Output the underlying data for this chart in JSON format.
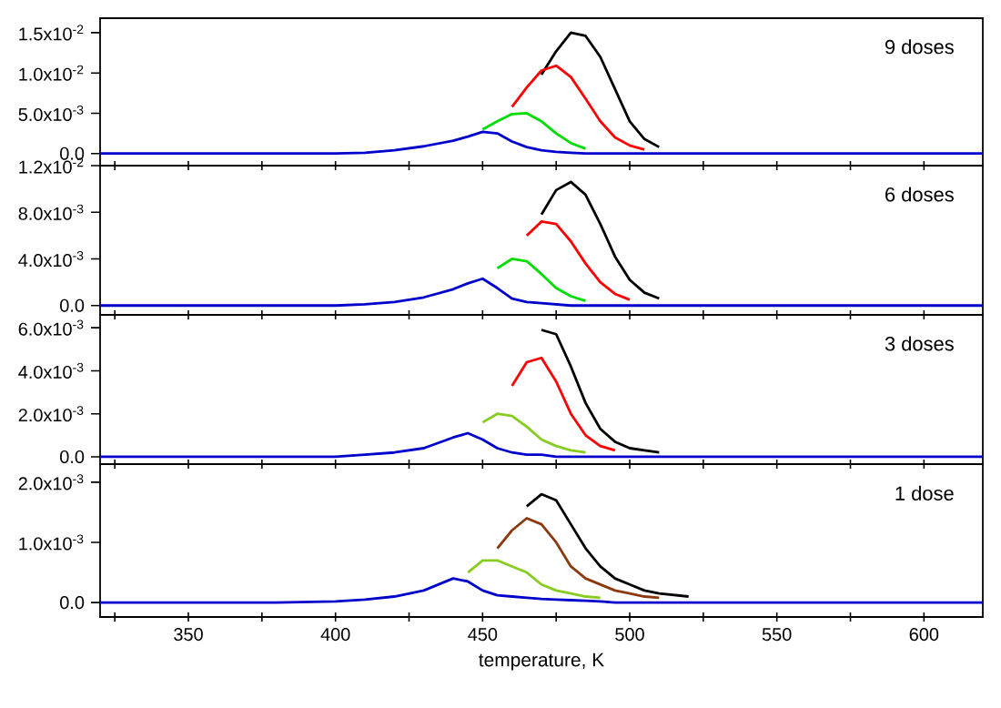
{
  "chart_data": [
    {
      "type": "line",
      "annotations": [
        "9 doses"
      ],
      "tick_labels": "y",
      "x": [
        320,
        380,
        400,
        410,
        420,
        430,
        440,
        445,
        450,
        455,
        460,
        465,
        470,
        475,
        480,
        485,
        490,
        495,
        500,
        505,
        510,
        520,
        530,
        550,
        580,
        620
      ],
      "xlim": [
        320,
        620
      ],
      "ylim": [
        -0.0015,
        0.0168
      ],
      "xticks": [
        {
          "value": 325,
          "label": null
        },
        350,
        {
          "value": 375,
          "label": null
        },
        400,
        {
          "value": 425,
          "label": null
        },
        450,
        {
          "value": 475,
          "label": null
        },
        500,
        {
          "value": 525,
          "label": null
        },
        550,
        {
          "value": 575,
          "label": null
        },
        600
      ],
      "yticks": [
        {
          "value": 0,
          "label": "0.0"
        },
        {
          "value": 0.005,
          "label": "5.0x10$^{-3}$"
        },
        {
          "value": 0.01,
          "label": "1.0x10$^{-2}$"
        },
        {
          "value": 0.015,
          "label": "1.5x10$^{-2}$"
        }
      ],
      "series": [
        {
          "color": "#000000",
          "values": [
            null,
            null,
            null,
            null,
            null,
            null,
            null,
            null,
            null,
            null,
            null,
            null,
            0.0098,
            0.0127,
            0.015,
            0.0146,
            0.012,
            0.008,
            0.004,
            0.0018,
            0.0008,
            null,
            null,
            null,
            null,
            null
          ]
        },
        {
          "color": "#ff0000",
          "values": [
            null,
            null,
            null,
            null,
            null,
            null,
            null,
            null,
            null,
            null,
            0.0058,
            0.0082,
            0.0103,
            0.0109,
            0.0095,
            0.0068,
            0.004,
            0.002,
            0.001,
            0.0005,
            null,
            null,
            null,
            null,
            null,
            null
          ]
        },
        {
          "color": "#00dd00",
          "values": [
            null,
            null,
            null,
            null,
            null,
            null,
            null,
            null,
            0.003,
            0.004,
            0.0049,
            0.005,
            0.004,
            0.0025,
            0.0013,
            0.0006,
            null,
            null,
            null,
            null,
            null,
            null,
            null,
            null,
            null,
            null
          ]
        },
        {
          "color": "#0000cc",
          "values": [
            0,
            0,
            0,
            0.0001,
            0.0004,
            0.0009,
            0.0016,
            0.0021,
            0.0027,
            0.0025,
            0.0015,
            0.0008,
            0.0004,
            0.0002,
            0.0001,
            0,
            0,
            0,
            0,
            0,
            0,
            0,
            0,
            0,
            0,
            0
          ]
        }
      ]
    },
    {
      "type": "line",
      "annotations": [
        "6 doses"
      ],
      "tick_labels": "y",
      "x": [
        320,
        380,
        400,
        410,
        420,
        430,
        440,
        445,
        450,
        455,
        460,
        465,
        470,
        475,
        480,
        485,
        490,
        495,
        500,
        505,
        510,
        520,
        530,
        550,
        580,
        620
      ],
      "xlim": [
        320,
        620
      ],
      "ylim": [
        -0.0008,
        0.012
      ],
      "xticks": [
        {
          "value": 325,
          "label": null
        },
        350,
        {
          "value": 375,
          "label": null
        },
        400,
        {
          "value": 425,
          "label": null
        },
        450,
        {
          "value": 475,
          "label": null
        },
        500,
        {
          "value": 525,
          "label": null
        },
        550,
        {
          "value": 575,
          "label": null
        },
        600
      ],
      "yticks": [
        {
          "value": 0,
          "label": "0.0"
        },
        {
          "value": 0.004,
          "label": "4.0x10$^{-3}$"
        },
        {
          "value": 0.008,
          "label": "8.0x10$^{-3}$"
        },
        {
          "value": 0.012,
          "label": "1.2x10$^{-2}$"
        }
      ],
      "series": [
        {
          "color": "#000000",
          "values": [
            null,
            null,
            null,
            null,
            null,
            null,
            null,
            null,
            null,
            null,
            null,
            null,
            0.0078,
            0.0099,
            0.0106,
            0.0095,
            0.007,
            0.0042,
            0.0022,
            0.0011,
            0.0006,
            null,
            null,
            null,
            null,
            null
          ]
        },
        {
          "color": "#ff0000",
          "values": [
            null,
            null,
            null,
            null,
            null,
            null,
            null,
            null,
            null,
            null,
            null,
            0.006,
            0.0072,
            0.007,
            0.0055,
            0.0036,
            0.002,
            0.001,
            0.0005,
            null,
            null,
            null,
            null,
            null,
            null,
            null
          ]
        },
        {
          "color": "#00dd00",
          "values": [
            null,
            null,
            null,
            null,
            null,
            null,
            null,
            null,
            null,
            0.0032,
            0.004,
            0.0038,
            0.0027,
            0.0015,
            0.0008,
            0.0004,
            null,
            null,
            null,
            null,
            null,
            null,
            null,
            null,
            null,
            null
          ]
        },
        {
          "color": "#0000cc",
          "values": [
            0,
            0,
            0,
            0.0001,
            0.0003,
            0.0007,
            0.0014,
            0.0019,
            0.0023,
            0.0015,
            0.0006,
            0.0003,
            0.0002,
            0.0001,
            0,
            0,
            0,
            0,
            0,
            0,
            0,
            0,
            0,
            0,
            0,
            0
          ]
        }
      ]
    },
    {
      "type": "line",
      "annotations": [
        "3 doses"
      ],
      "tick_labels": "y",
      "x": [
        320,
        380,
        400,
        410,
        420,
        430,
        440,
        445,
        450,
        455,
        460,
        465,
        470,
        475,
        480,
        485,
        490,
        495,
        500,
        505,
        510,
        520,
        530,
        550,
        580,
        620
      ],
      "xlim": [
        320,
        620
      ],
      "ylim": [
        -0.00034,
        0.0066
      ],
      "xticks": [
        {
          "value": 325,
          "label": null
        },
        350,
        {
          "value": 375,
          "label": null
        },
        400,
        {
          "value": 425,
          "label": null
        },
        450,
        {
          "value": 475,
          "label": null
        },
        500,
        {
          "value": 525,
          "label": null
        },
        550,
        {
          "value": 575,
          "label": null
        },
        600
      ],
      "yticks": [
        {
          "value": 0,
          "label": "0.0"
        },
        {
          "value": 0.002,
          "label": "2.0x10$^{-3}$"
        },
        {
          "value": 0.004,
          "label": "4.0x10$^{-3}$"
        },
        {
          "value": 0.006,
          "label": "6.0x10$^{-3}$"
        }
      ],
      "series": [
        {
          "color": "#000000",
          "values": [
            null,
            null,
            null,
            null,
            null,
            null,
            null,
            null,
            null,
            null,
            null,
            null,
            0.0059,
            0.0057,
            0.0042,
            0.0025,
            0.0013,
            0.0007,
            0.0004,
            0.0003,
            0.0002,
            null,
            null,
            null,
            null,
            null
          ]
        },
        {
          "color": "#ff0000",
          "values": [
            null,
            null,
            null,
            null,
            null,
            null,
            null,
            null,
            null,
            null,
            0.0033,
            0.0044,
            0.0046,
            0.0035,
            0.002,
            0.001,
            0.0005,
            0.0003,
            null,
            null,
            null,
            null,
            null,
            null,
            null,
            null
          ]
        },
        {
          "color": "#88cc22",
          "values": [
            null,
            null,
            null,
            null,
            null,
            null,
            null,
            null,
            0.0016,
            0.002,
            0.0019,
            0.0014,
            0.0008,
            0.0005,
            0.0003,
            0.0002,
            null,
            null,
            null,
            null,
            null,
            null,
            null,
            null,
            null,
            null
          ]
        },
        {
          "color": "#0000cc",
          "values": [
            0,
            0,
            0,
            0.0001,
            0.0002,
            0.0004,
            0.0009,
            0.0011,
            0.0008,
            0.0004,
            0.0002,
            0.0001,
            0.0001,
            0,
            0,
            0,
            0,
            0,
            0,
            0,
            0,
            0,
            0,
            0,
            0,
            0
          ]
        }
      ]
    },
    {
      "type": "line",
      "annotations": [
        "1 dose"
      ],
      "xlabel": "temperature, K",
      "x": [
        320,
        380,
        400,
        410,
        420,
        430,
        440,
        445,
        450,
        455,
        460,
        465,
        470,
        475,
        480,
        485,
        490,
        495,
        500,
        505,
        510,
        520,
        530,
        550,
        580,
        620
      ],
      "xlim": [
        320,
        620
      ],
      "ylim": [
        -0.00024,
        0.0023
      ],
      "xticks": [
        {
          "value": 325,
          "label": null
        },
        350,
        {
          "value": 375,
          "label": null
        },
        400,
        {
          "value": 425,
          "label": null
        },
        450,
        {
          "value": 475,
          "label": null
        },
        500,
        {
          "value": 525,
          "label": null
        },
        550,
        {
          "value": 575,
          "label": null
        },
        600
      ],
      "yticks": [
        {
          "value": 0,
          "label": "0.0"
        },
        {
          "value": 0.001,
          "label": "1.0x10$^{-3}$"
        },
        {
          "value": 0.002,
          "label": "2.0x10$^{-3}$"
        }
      ],
      "series": [
        {
          "color": "#000000",
          "values": [
            null,
            null,
            null,
            null,
            null,
            null,
            null,
            null,
            null,
            null,
            null,
            0.0016,
            0.0018,
            0.0017,
            0.0013,
            0.0009,
            0.0006,
            0.0004,
            0.0003,
            0.0002,
            0.00015,
            0.0001,
            null,
            null,
            null,
            null
          ]
        },
        {
          "color": "#8b3a10",
          "values": [
            null,
            null,
            null,
            null,
            null,
            null,
            null,
            null,
            null,
            0.0009,
            0.0012,
            0.0014,
            0.0013,
            0.001,
            0.0006,
            0.0004,
            0.0003,
            0.0002,
            0.00015,
            0.0001,
            8e-05,
            null,
            null,
            null,
            null,
            null
          ]
        },
        {
          "color": "#88cc22",
          "values": [
            null,
            null,
            null,
            null,
            null,
            null,
            null,
            0.0005,
            0.0007,
            0.0007,
            0.0006,
            0.0005,
            0.0003,
            0.0002,
            0.00015,
            0.0001,
            8e-05,
            null,
            null,
            null,
            null,
            null,
            null,
            null,
            null,
            null
          ]
        },
        {
          "color": "#0000cc",
          "values": [
            0,
            0,
            2e-05,
            5e-05,
            0.0001,
            0.0002,
            0.0004,
            0.00035,
            0.0002,
            0.00012,
            0.0001,
            8e-05,
            6e-05,
            5e-05,
            4e-05,
            3e-05,
            2e-05,
            0,
            0,
            0,
            0,
            0,
            0,
            0,
            0,
            0
          ]
        }
      ]
    }
  ]
}
